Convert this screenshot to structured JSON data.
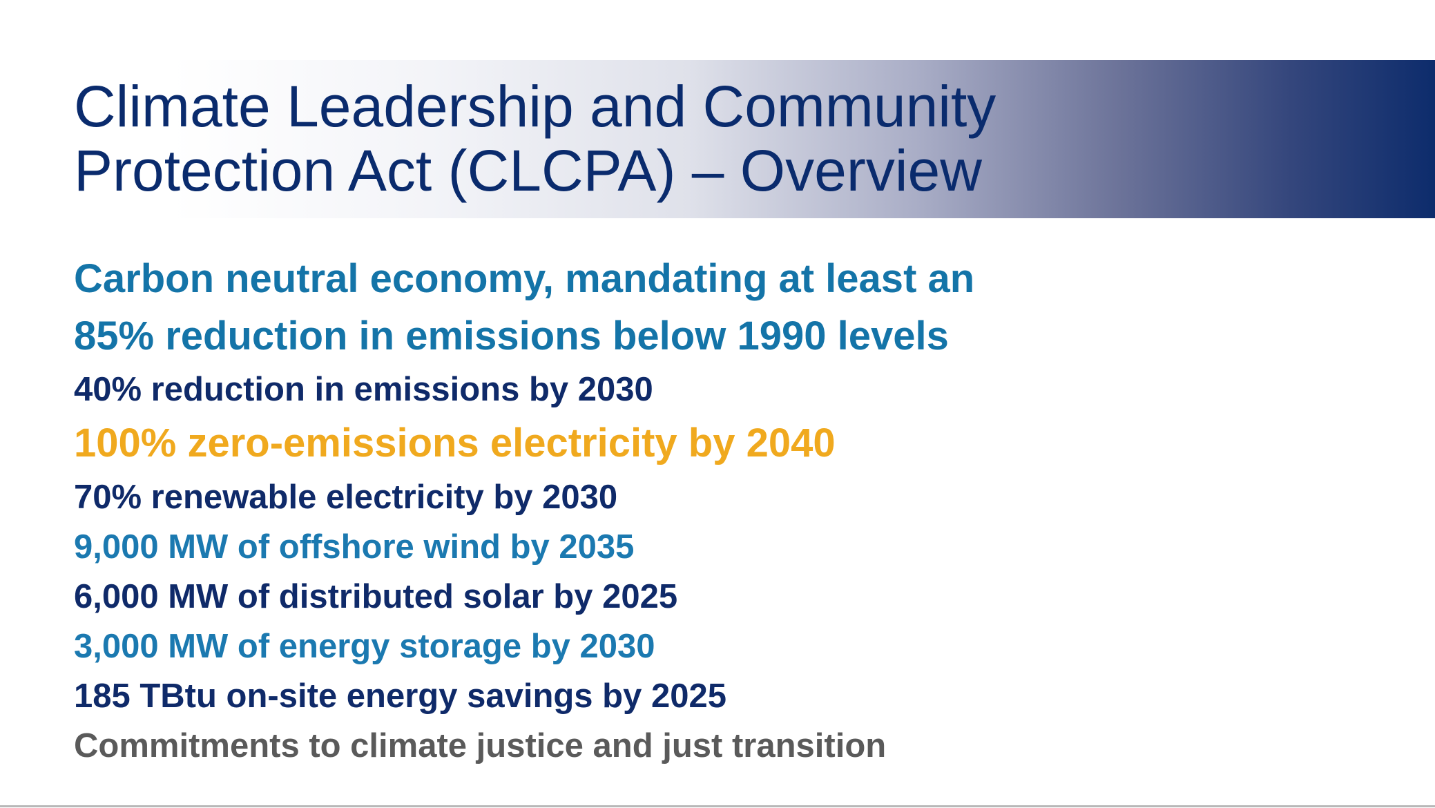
{
  "title": {
    "line1": "Climate Leadership and Community",
    "line2": "Protection Act (CLCPA) – Overview"
  },
  "bullets": {
    "headline_line1": "Carbon neutral economy, mandating at least an",
    "headline_line2": "85% reduction in emissions below 1990 levels",
    "item1": "40% reduction in emissions by 2030",
    "item2": "100% zero-emissions electricity by 2040",
    "item3": "70% renewable electricity by 2030",
    "item4": "9,000 MW of offshore wind by 2035",
    "item5": "6,000 MW of distributed solar by 2025",
    "item6": "3,000 MW of energy storage by 2030",
    "item7": "185 TBtu on-site energy savings by 2025",
    "item8": "Commitments to climate justice and just transition"
  },
  "colors": {
    "title": "#0a2b6d",
    "headline": "#1474a8",
    "navy": "#0f2a69",
    "blue": "#1b79b0",
    "gold": "#f0a91e",
    "gray": "#5a5a5a",
    "band_end": "#0d2c6c"
  }
}
